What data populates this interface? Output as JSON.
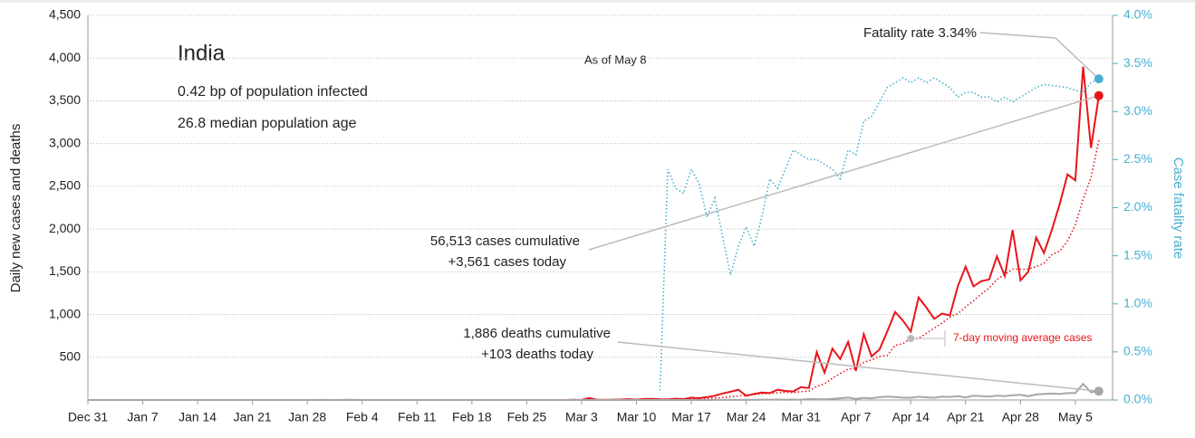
{
  "chart_data": {
    "type": "line",
    "title": "India",
    "subtitle": [
      "0.42 bp of population infected",
      "26.8 median population age"
    ],
    "date_note": "As of May 8",
    "y_label": "Daily new cases and deaths",
    "y2_label": "Case fatality rate",
    "annotations": [
      "Fatality rate 3.34%",
      "56,513 cases cumulative",
      "+3,561 cases today",
      "1,886 deaths cumulative",
      "+103 deaths today"
    ],
    "categories": [
      "Dec 31",
      null,
      null,
      null,
      null,
      null,
      null,
      "Jan 7",
      null,
      null,
      null,
      null,
      null,
      null,
      "Jan 14",
      null,
      null,
      null,
      null,
      null,
      null,
      "Jan 21",
      null,
      null,
      null,
      null,
      null,
      null,
      "Jan 28",
      null,
      null,
      null,
      null,
      null,
      null,
      "Feb 4",
      null,
      null,
      null,
      null,
      null,
      null,
      "Feb 11",
      null,
      null,
      null,
      null,
      null,
      null,
      "Feb 18",
      null,
      null,
      null,
      null,
      null,
      null,
      "Feb 25",
      null,
      null,
      null,
      null,
      null,
      null,
      "Mar 3",
      null,
      null,
      null,
      null,
      null,
      null,
      "Mar 10",
      null,
      null,
      null,
      null,
      null,
      null,
      "Mar 17",
      null,
      null,
      null,
      null,
      null,
      null,
      "Mar 24",
      null,
      null,
      null,
      null,
      null,
      null,
      "Mar 31",
      null,
      null,
      null,
      null,
      null,
      null,
      "Apr 7",
      null,
      null,
      null,
      null,
      null,
      null,
      "Apr 14",
      null,
      null,
      null,
      null,
      null,
      null,
      "Apr 21",
      null,
      null,
      null,
      null,
      null,
      null,
      "Apr 28",
      null,
      null,
      null,
      null,
      null,
      null,
      "May 5",
      null,
      null,
      null
    ],
    "series": [
      {
        "color": "#e8141b",
        "dash": "solid",
        "axis": "y",
        "values": [
          0,
          0,
          0,
          0,
          0,
          0,
          0,
          0,
          0,
          0,
          0,
          0,
          0,
          0,
          0,
          0,
          0,
          0,
          0,
          0,
          0,
          0,
          0,
          0,
          0,
          0,
          0,
          0,
          0,
          0,
          1,
          0,
          0,
          1,
          1,
          0,
          0,
          0,
          0,
          0,
          0,
          0,
          0,
          0,
          0,
          0,
          0,
          0,
          0,
          0,
          0,
          0,
          0,
          0,
          0,
          0,
          0,
          0,
          0,
          0,
          0,
          0,
          2,
          1,
          22,
          2,
          1,
          3,
          5,
          9,
          4,
          12,
          13,
          8,
          6,
          15,
          11,
          26,
          21,
          34,
          50,
          76,
          96,
          120,
          50,
          70,
          88,
          81,
          120,
          106,
          100,
          150,
          140,
          560,
          320,
          600,
          480,
          680,
          340,
          770,
          510,
          590,
          800,
          1030,
          930,
          800,
          1200,
          1080,
          950,
          1010,
          990,
          1330,
          1560,
          1330,
          1390,
          1410,
          1680,
          1450,
          1990,
          1400,
          1500,
          1900,
          1720,
          1990,
          2290,
          2640,
          2570,
          3900,
          2950,
          3561
        ]
      },
      {
        "name": "7-day moving average cases",
        "color": "#e8141b",
        "dash": "dotted",
        "axis": "y",
        "values": [
          0,
          0,
          0,
          0,
          0,
          0,
          0,
          0,
          0,
          0,
          0,
          0,
          0,
          0,
          0,
          0,
          0,
          0,
          0,
          0,
          0,
          0,
          0,
          0,
          0,
          0,
          0,
          0,
          0,
          0,
          0,
          0,
          0,
          0,
          0,
          0,
          0,
          0,
          0,
          0,
          0,
          0,
          0,
          0,
          0,
          0,
          0,
          0,
          0,
          0,
          0,
          0,
          0,
          0,
          0,
          0,
          0,
          0,
          0,
          0,
          0,
          0,
          0.3,
          0.4,
          3.6,
          3.9,
          4,
          4.4,
          5.1,
          6.3,
          6.6,
          8,
          9.6,
          8.1,
          8.4,
          9.6,
          10,
          13,
          14,
          17,
          23,
          30,
          38,
          48,
          54,
          64,
          73,
          76,
          83,
          90,
          88,
          97,
          105,
          160,
          190,
          255,
          310,
          360,
          375,
          440,
          470,
          510,
          520,
          640,
          660,
          720,
          720,
          780,
          840,
          900,
          970,
          1010,
          1090,
          1160,
          1240,
          1310,
          1410,
          1470,
          1530,
          1530,
          1530,
          1560,
          1600,
          1700,
          1740,
          1860,
          2050,
          2350,
          2600,
          3040
        ]
      },
      {
        "color": "#a6a6a6",
        "dash": "solid",
        "axis": "y",
        "values": [
          0,
          0,
          0,
          0,
          0,
          0,
          0,
          0,
          0,
          0,
          0,
          0,
          0,
          0,
          0,
          0,
          0,
          0,
          0,
          0,
          0,
          0,
          0,
          0,
          0,
          0,
          0,
          0,
          0,
          0,
          0,
          0,
          0,
          0,
          0,
          0,
          0,
          0,
          0,
          0,
          0,
          0,
          0,
          0,
          0,
          0,
          0,
          0,
          0,
          0,
          0,
          0,
          0,
          0,
          0,
          0,
          0,
          0,
          0,
          0,
          0,
          0,
          0,
          0,
          0,
          0,
          0,
          0,
          0,
          0,
          0,
          0,
          0,
          0,
          0,
          0,
          0,
          0,
          0,
          0,
          1,
          1,
          3,
          1,
          2,
          1,
          4,
          4,
          5,
          2,
          5,
          3,
          12,
          10,
          8,
          13,
          20,
          30,
          13,
          25,
          20,
          33,
          40,
          35,
          27,
          25,
          38,
          31,
          26,
          40,
          36,
          45,
          30,
          50,
          45,
          40,
          50,
          45,
          55,
          60,
          45,
          65,
          70,
          75,
          70,
          80,
          80,
          190,
          90,
          103
        ]
      },
      {
        "color": "#4aaed0",
        "dash": "dotted",
        "axis": "y2",
        "values": [
          null,
          null,
          null,
          null,
          null,
          null,
          null,
          null,
          null,
          null,
          null,
          null,
          null,
          null,
          null,
          null,
          null,
          null,
          null,
          null,
          null,
          null,
          null,
          null,
          null,
          null,
          null,
          null,
          null,
          null,
          null,
          null,
          null,
          null,
          null,
          null,
          null,
          null,
          null,
          null,
          null,
          null,
          null,
          null,
          null,
          null,
          null,
          null,
          null,
          null,
          null,
          null,
          null,
          null,
          null,
          null,
          null,
          null,
          null,
          null,
          null,
          null,
          null,
          null,
          null,
          null,
          null,
          null,
          null,
          null,
          null,
          null,
          null,
          0.1,
          2.4,
          2.2,
          2.15,
          2.4,
          2.25,
          1.9,
          2.1,
          1.7,
          1.3,
          1.6,
          1.8,
          1.6,
          1.9,
          2.3,
          2.2,
          2.4,
          2.6,
          2.55,
          2.5,
          2.5,
          2.45,
          2.4,
          2.3,
          2.6,
          2.55,
          2.9,
          2.95,
          3.1,
          3.25,
          3.3,
          3.35,
          3.3,
          3.35,
          3.3,
          3.35,
          3.3,
          3.25,
          3.15,
          3.2,
          3.2,
          3.15,
          3.15,
          3.1,
          3.15,
          3.1,
          3.15,
          3.2,
          3.25,
          3.28,
          3.27,
          3.26,
          3.25,
          3.22,
          3.2,
          3.3,
          3.34
        ]
      }
    ],
    "ylim": [
      0,
      4500
    ],
    "yticks": [
      {
        "value": 500,
        "label": "500"
      },
      {
        "value": 1000,
        "label": "1,000"
      },
      {
        "value": 1500,
        "label": "1,500"
      },
      {
        "value": 2000,
        "label": "2,000"
      },
      {
        "value": 2500,
        "label": "2,500"
      },
      {
        "value": 3000,
        "label": "3,000"
      },
      {
        "value": 3500,
        "label": "3,500"
      },
      {
        "value": 4000,
        "label": "4,000"
      },
      {
        "value": 4500,
        "label": "4,500"
      }
    ],
    "y2lim": [
      0,
      4
    ],
    "y2ticks": [
      {
        "value": 0,
        "label": "0.0%"
      },
      {
        "value": 0.5,
        "label": "0.5%"
      },
      {
        "value": 1,
        "label": "1.0%"
      },
      {
        "value": 1.5,
        "label": "1.5%"
      },
      {
        "value": 2,
        "label": "2.0%"
      },
      {
        "value": 2.5,
        "label": "2.5%"
      },
      {
        "value": 3,
        "label": "3.0%"
      },
      {
        "value": 3.5,
        "label": "3.5%"
      },
      {
        "value": 4,
        "label": "4.0%"
      }
    ],
    "grid": true
  }
}
